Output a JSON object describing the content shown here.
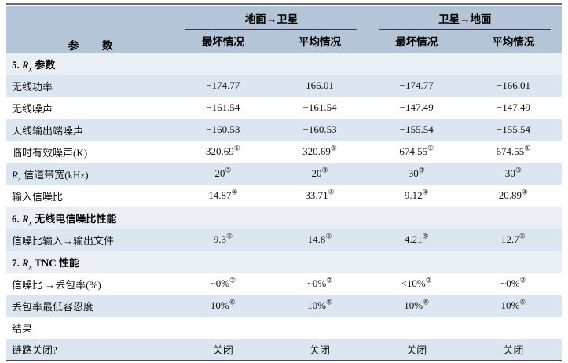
{
  "colors": {
    "header_bg": "#b4c5d7",
    "band_blue": "#dce6f1",
    "band_white": "#ffffff",
    "section_bg": "#eaeff5",
    "rule_dark": "#4a4a4a",
    "text": "#111111"
  },
  "table": {
    "header": {
      "param_label": "参数",
      "groups": [
        {
          "label": "地面→卫星",
          "cols": [
            "最坏情况",
            "平均情况"
          ]
        },
        {
          "label": "卫星→地面",
          "cols": [
            "最坏情况",
            "平均情况"
          ]
        }
      ]
    },
    "rows": [
      {
        "kind": "section",
        "label": [
          {
            "t": "5. "
          },
          {
            "t": "R",
            "s": "ri"
          },
          {
            "t": "x",
            "s": "sub"
          },
          {
            "t": " 参数"
          }
        ],
        "values": []
      },
      {
        "kind": "data",
        "label": [
          {
            "t": "无线功率"
          }
        ],
        "values": [
          {
            "t": "−174.77"
          },
          {
            "t": "166.01"
          },
          {
            "t": "−174.77"
          },
          {
            "t": "−166.01"
          }
        ]
      },
      {
        "kind": "data",
        "label": [
          {
            "t": "无线噪声"
          }
        ],
        "values": [
          {
            "t": "−161.54"
          },
          {
            "t": "−161.54"
          },
          {
            "t": "−147.49"
          },
          {
            "t": "−147.49"
          }
        ]
      },
      {
        "kind": "data",
        "label": [
          {
            "t": "天线输出端噪声"
          }
        ],
        "values": [
          {
            "t": "−160.53"
          },
          {
            "t": "−160.53"
          },
          {
            "t": "−155.54"
          },
          {
            "t": "−155.54"
          }
        ]
      },
      {
        "kind": "data",
        "label": [
          {
            "t": "临时有效噪声(K)"
          }
        ],
        "values": [
          {
            "t": "320.69",
            "sup": "①"
          },
          {
            "t": "320.69",
            "sup": "①"
          },
          {
            "t": "674.55",
            "sup": "①"
          },
          {
            "t": "674.55",
            "sup": "①"
          }
        ]
      },
      {
        "kind": "data",
        "label": [
          {
            "t": "R",
            "s": "ri"
          },
          {
            "t": "x",
            "s": "sub"
          },
          {
            "t": " 信道带宽(kHz)"
          }
        ],
        "values": [
          {
            "t": "20",
            "sup": "③"
          },
          {
            "t": "20",
            "sup": "③"
          },
          {
            "t": "30",
            "sup": "③"
          },
          {
            "t": "30",
            "sup": "③"
          }
        ]
      },
      {
        "kind": "data",
        "label": [
          {
            "t": "输入信噪比"
          }
        ],
        "values": [
          {
            "t": "14.87",
            "sup": "④"
          },
          {
            "t": "33.71",
            "sup": "④"
          },
          {
            "t": "9.12",
            "sup": "④"
          },
          {
            "t": "20.89",
            "sup": "④"
          }
        ]
      },
      {
        "kind": "section",
        "label": [
          {
            "t": "6. "
          },
          {
            "t": "R",
            "s": "ri"
          },
          {
            "t": "x",
            "s": "sub"
          },
          {
            "t": " 无线电信噪比性能"
          }
        ],
        "values": []
      },
      {
        "kind": "data",
        "label": [
          {
            "t": "信噪比输入→输出文件"
          }
        ],
        "values": [
          {
            "t": "9.3",
            "sup": "⑤"
          },
          {
            "t": "14.8",
            "sup": "⑤"
          },
          {
            "t": "4.21",
            "sup": "⑤"
          },
          {
            "t": "12.7",
            "sup": "⑤"
          }
        ]
      },
      {
        "kind": "section",
        "label": [
          {
            "t": "7. "
          },
          {
            "t": "R",
            "s": "ri"
          },
          {
            "t": "x",
            "s": "sub"
          },
          {
            "t": " TNC 性能"
          }
        ],
        "values": []
      },
      {
        "kind": "data",
        "label": [
          {
            "t": "信噪比 →丢包率(%)"
          }
        ],
        "values": [
          {
            "t": "~0%",
            "sup": "②"
          },
          {
            "t": "~0%",
            "sup": "②"
          },
          {
            "t": "<10%",
            "sup": "②"
          },
          {
            "t": "~0%",
            "sup": "②"
          }
        ]
      },
      {
        "kind": "data",
        "label": [
          {
            "t": "丢包率最低容忍度"
          }
        ],
        "values": [
          {
            "t": "10%",
            "sup": "⑥"
          },
          {
            "t": "10%",
            "sup": "⑥"
          },
          {
            "t": "10%",
            "sup": "⑥"
          },
          {
            "t": "10%",
            "sup": "⑥"
          }
        ]
      },
      {
        "kind": "data",
        "label": [
          {
            "t": "结果"
          }
        ],
        "values": [
          {
            "t": ""
          },
          {
            "t": ""
          },
          {
            "t": ""
          },
          {
            "t": ""
          }
        ]
      },
      {
        "kind": "data",
        "label": [
          {
            "t": "链路关闭?"
          }
        ],
        "values": [
          {
            "t": "关闭"
          },
          {
            "t": "关闭"
          },
          {
            "t": "关闭"
          },
          {
            "t": "关闭"
          }
        ]
      }
    ]
  }
}
